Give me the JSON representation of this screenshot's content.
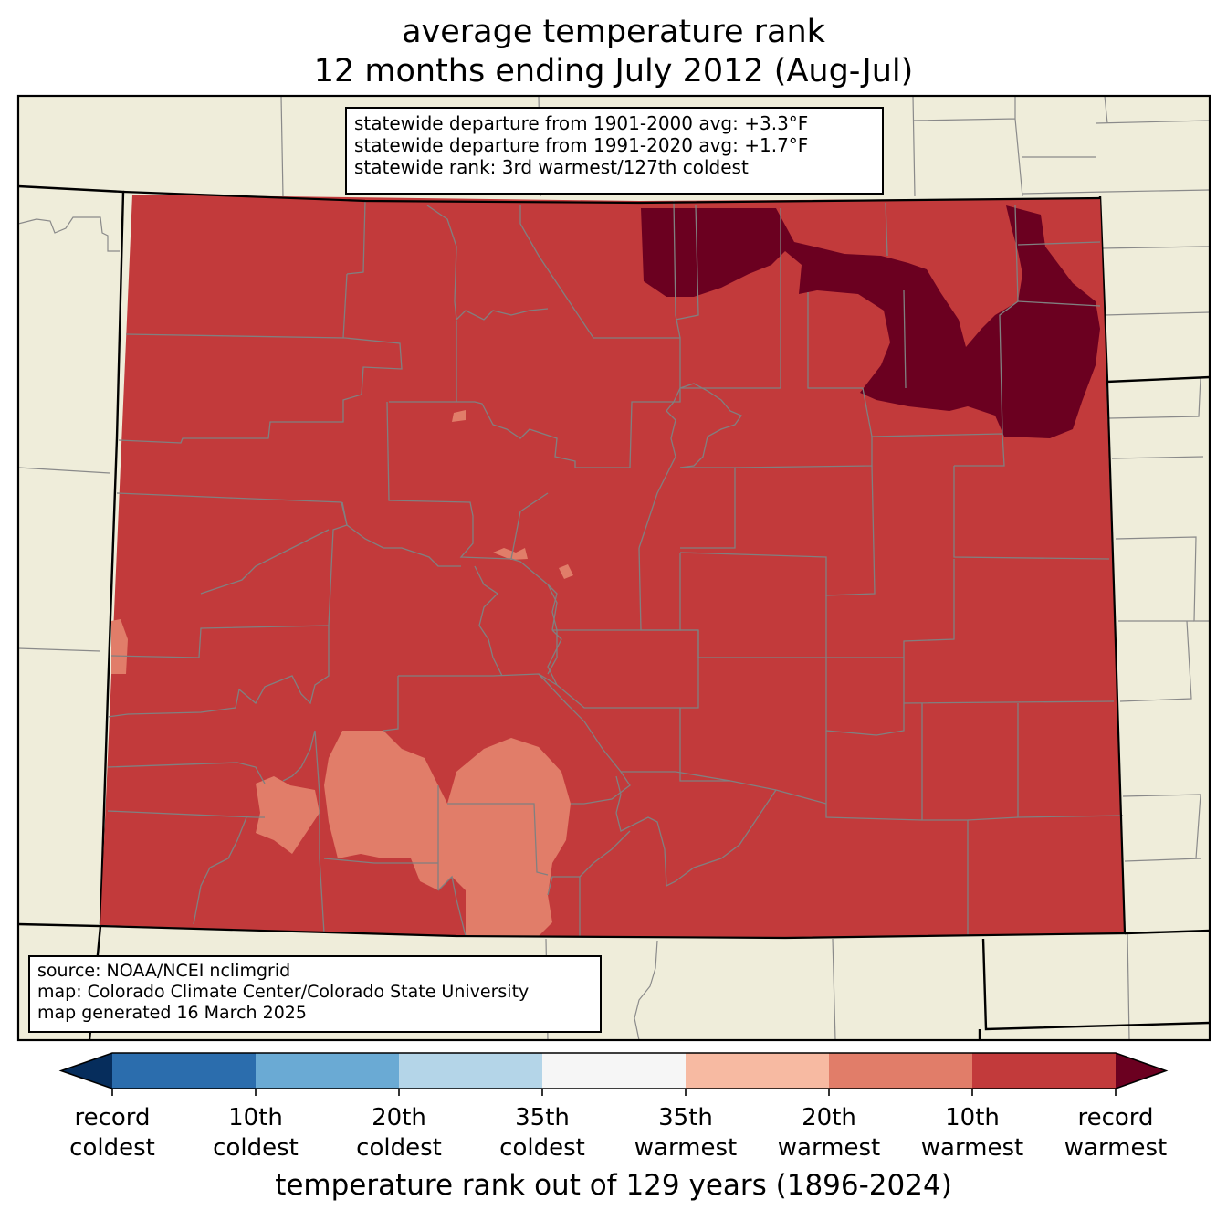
{
  "title": {
    "line1": "average temperature rank",
    "line2": "12 months ending July 2012 (Aug-Jul)"
  },
  "stats_box": {
    "line1": "statewide departure from 1901-2000 avg: +3.3°F",
    "line2": "statewide departure from 1991-2020 avg: +1.7°F",
    "line3": "statewide rank: 3rd warmest/127th coldest"
  },
  "source_box": {
    "line1": "source: NOAA/NCEI nclimgrid",
    "line2": "map: Colorado Climate Center/Colorado State University",
    "line3": "map generated 16 March 2025"
  },
  "colors": {
    "background": "#efedda",
    "county_lines": "#808080",
    "rank_10th_to_record_warmest": "#c23a3b",
    "record_warmest": "#6b0020",
    "rank_20th_to_10th_warmest": "#e17d69",
    "rank_35th_to_20th_warmest": "#f7baa2"
  },
  "colorbar": {
    "segments": [
      "#2b6dad",
      "#6aaad4",
      "#b4d5e8",
      "#f6f6f6",
      "#f7baa2",
      "#e17d69",
      "#c23a3b"
    ],
    "low_extension": "#062d5c",
    "high_extension": "#6b0020",
    "labels": [
      {
        "top": "record",
        "bottom": "coldest"
      },
      {
        "top": "10th",
        "bottom": "coldest"
      },
      {
        "top": "20th",
        "bottom": "coldest"
      },
      {
        "top": "35th",
        "bottom": "coldest"
      },
      {
        "top": "35th",
        "bottom": "warmest"
      },
      {
        "top": "20th",
        "bottom": "warmest"
      },
      {
        "top": "10th",
        "bottom": "warmest"
      },
      {
        "top": "record",
        "bottom": "warmest"
      }
    ],
    "title": "temperature rank out of 129 years (1896-2024)"
  }
}
